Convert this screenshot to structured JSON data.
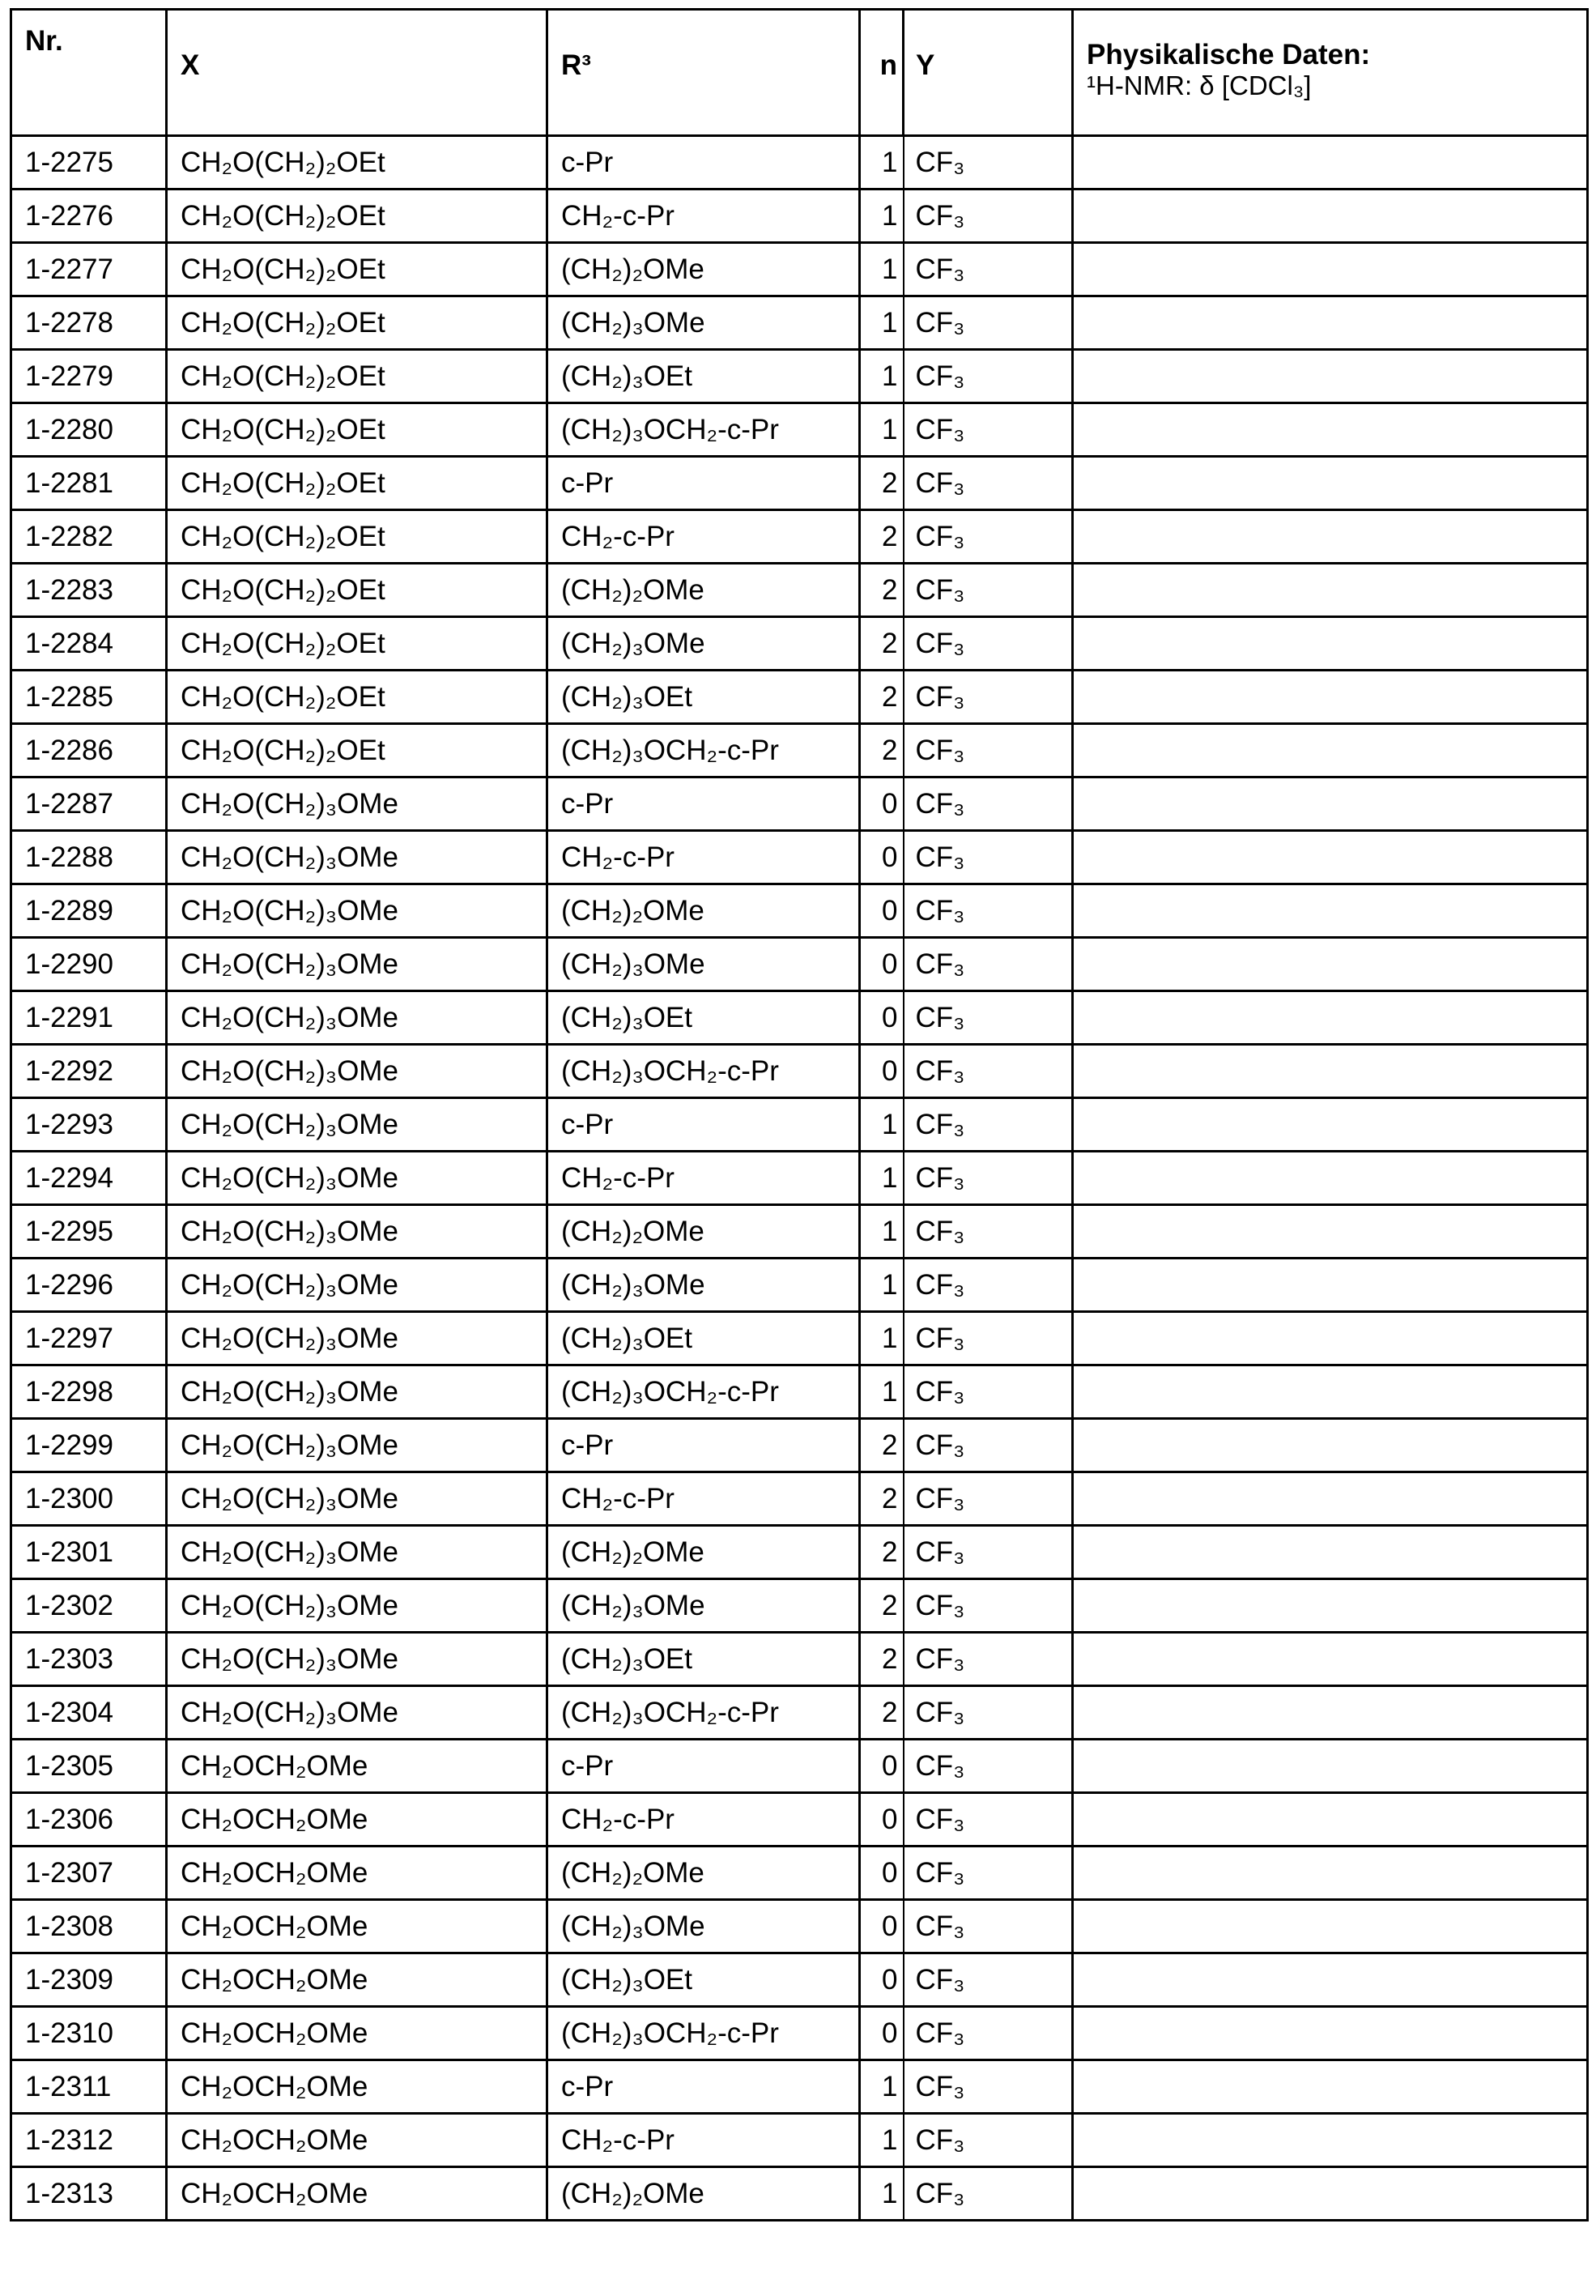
{
  "header": {
    "nr": "Nr.",
    "x": "X",
    "r3": "R³",
    "n": "n",
    "y": "Y",
    "phys_line1": "Physikalische Daten:",
    "phys_line2": "¹H-NMR: δ [CDCl₃]"
  },
  "rows": [
    {
      "nr": "1-2275",
      "x": "CH₂O(CH₂)₂OEt",
      "r3": "c-Pr",
      "n": "1",
      "y": "CF₃",
      "phys": ""
    },
    {
      "nr": "1-2276",
      "x": "CH₂O(CH₂)₂OEt",
      "r3": "CH₂-c-Pr",
      "n": "1",
      "y": "CF₃",
      "phys": ""
    },
    {
      "nr": "1-2277",
      "x": "CH₂O(CH₂)₂OEt",
      "r3": "(CH₂)₂OMe",
      "n": "1",
      "y": "CF₃",
      "phys": ""
    },
    {
      "nr": "1-2278",
      "x": "CH₂O(CH₂)₂OEt",
      "r3": "(CH₂)₃OMe",
      "n": "1",
      "y": "CF₃",
      "phys": ""
    },
    {
      "nr": "1-2279",
      "x": "CH₂O(CH₂)₂OEt",
      "r3": "(CH₂)₃OEt",
      "n": "1",
      "y": "CF₃",
      "phys": ""
    },
    {
      "nr": "1-2280",
      "x": "CH₂O(CH₂)₂OEt",
      "r3": "(CH₂)₃OCH₂-c-Pr",
      "n": "1",
      "y": "CF₃",
      "phys": ""
    },
    {
      "nr": "1-2281",
      "x": "CH₂O(CH₂)₂OEt",
      "r3": "c-Pr",
      "n": "2",
      "y": "CF₃",
      "phys": ""
    },
    {
      "nr": "1-2282",
      "x": "CH₂O(CH₂)₂OEt",
      "r3": "CH₂-c-Pr",
      "n": "2",
      "y": "CF₃",
      "phys": ""
    },
    {
      "nr": "1-2283",
      "x": "CH₂O(CH₂)₂OEt",
      "r3": "(CH₂)₂OMe",
      "n": "2",
      "y": "CF₃",
      "phys": ""
    },
    {
      "nr": "1-2284",
      "x": "CH₂O(CH₂)₂OEt",
      "r3": "(CH₂)₃OMe",
      "n": "2",
      "y": "CF₃",
      "phys": ""
    },
    {
      "nr": "1-2285",
      "x": "CH₂O(CH₂)₂OEt",
      "r3": "(CH₂)₃OEt",
      "n": "2",
      "y": "CF₃",
      "phys": ""
    },
    {
      "nr": "1-2286",
      "x": "CH₂O(CH₂)₂OEt",
      "r3": "(CH₂)₃OCH₂-c-Pr",
      "n": "2",
      "y": "CF₃",
      "phys": ""
    },
    {
      "nr": "1-2287",
      "x": "CH₂O(CH₂)₃OMe",
      "r3": "c-Pr",
      "n": "0",
      "y": "CF₃",
      "phys": ""
    },
    {
      "nr": "1-2288",
      "x": "CH₂O(CH₂)₃OMe",
      "r3": "CH₂-c-Pr",
      "n": "0",
      "y": "CF₃",
      "phys": ""
    },
    {
      "nr": "1-2289",
      "x": "CH₂O(CH₂)₃OMe",
      "r3": "(CH₂)₂OMe",
      "n": "0",
      "y": "CF₃",
      "phys": ""
    },
    {
      "nr": "1-2290",
      "x": "CH₂O(CH₂)₃OMe",
      "r3": "(CH₂)₃OMe",
      "n": "0",
      "y": "CF₃",
      "phys": ""
    },
    {
      "nr": "1-2291",
      "x": "CH₂O(CH₂)₃OMe",
      "r3": "(CH₂)₃OEt",
      "n": "0",
      "y": "CF₃",
      "phys": ""
    },
    {
      "nr": "1-2292",
      "x": "CH₂O(CH₂)₃OMe",
      "r3": "(CH₂)₃OCH₂-c-Pr",
      "n": "0",
      "y": "CF₃",
      "phys": ""
    },
    {
      "nr": "1-2293",
      "x": "CH₂O(CH₂)₃OMe",
      "r3": "c-Pr",
      "n": "1",
      "y": "CF₃",
      "phys": ""
    },
    {
      "nr": "1-2294",
      "x": "CH₂O(CH₂)₃OMe",
      "r3": "CH₂-c-Pr",
      "n": "1",
      "y": "CF₃",
      "phys": ""
    },
    {
      "nr": "1-2295",
      "x": "CH₂O(CH₂)₃OMe",
      "r3": "(CH₂)₂OMe",
      "n": "1",
      "y": "CF₃",
      "phys": ""
    },
    {
      "nr": "1-2296",
      "x": "CH₂O(CH₂)₃OMe",
      "r3": "(CH₂)₃OMe",
      "n": "1",
      "y": "CF₃",
      "phys": ""
    },
    {
      "nr": "1-2297",
      "x": "CH₂O(CH₂)₃OMe",
      "r3": "(CH₂)₃OEt",
      "n": "1",
      "y": "CF₃",
      "phys": ""
    },
    {
      "nr": "1-2298",
      "x": "CH₂O(CH₂)₃OMe",
      "r3": "(CH₂)₃OCH₂-c-Pr",
      "n": "1",
      "y": "CF₃",
      "phys": ""
    },
    {
      "nr": "1-2299",
      "x": "CH₂O(CH₂)₃OMe",
      "r3": "c-Pr",
      "n": "2",
      "y": "CF₃",
      "phys": ""
    },
    {
      "nr": "1-2300",
      "x": "CH₂O(CH₂)₃OMe",
      "r3": "CH₂-c-Pr",
      "n": "2",
      "y": "CF₃",
      "phys": ""
    },
    {
      "nr": "1-2301",
      "x": "CH₂O(CH₂)₃OMe",
      "r3": "(CH₂)₂OMe",
      "n": "2",
      "y": "CF₃",
      "phys": ""
    },
    {
      "nr": "1-2302",
      "x": "CH₂O(CH₂)₃OMe",
      "r3": "(CH₂)₃OMe",
      "n": "2",
      "y": "CF₃",
      "phys": ""
    },
    {
      "nr": "1-2303",
      "x": "CH₂O(CH₂)₃OMe",
      "r3": "(CH₂)₃OEt",
      "n": "2",
      "y": "CF₃",
      "phys": ""
    },
    {
      "nr": "1-2304",
      "x": "CH₂O(CH₂)₃OMe",
      "r3": "(CH₂)₃OCH₂-c-Pr",
      "n": "2",
      "y": "CF₃",
      "phys": ""
    },
    {
      "nr": "1-2305",
      "x": "CH₂OCH₂OMe",
      "r3": "c-Pr",
      "n": "0",
      "y": "CF₃",
      "phys": ""
    },
    {
      "nr": "1-2306",
      "x": "CH₂OCH₂OMe",
      "r3": "CH₂-c-Pr",
      "n": "0",
      "y": "CF₃",
      "phys": ""
    },
    {
      "nr": "1-2307",
      "x": "CH₂OCH₂OMe",
      "r3": "(CH₂)₂OMe",
      "n": "0",
      "y": "CF₃",
      "phys": ""
    },
    {
      "nr": "1-2308",
      "x": "CH₂OCH₂OMe",
      "r3": "(CH₂)₃OMe",
      "n": "0",
      "y": "CF₃",
      "phys": ""
    },
    {
      "nr": "1-2309",
      "x": "CH₂OCH₂OMe",
      "r3": "(CH₂)₃OEt",
      "n": "0",
      "y": "CF₃",
      "phys": ""
    },
    {
      "nr": "1-2310",
      "x": "CH₂OCH₂OMe",
      "r3": "(CH₂)₃OCH₂-c-Pr",
      "n": "0",
      "y": "CF₃",
      "phys": ""
    },
    {
      "nr": "1-2311",
      "x": "CH₂OCH₂OMe",
      "r3": "c-Pr",
      "n": "1",
      "y": "CF₃",
      "phys": ""
    },
    {
      "nr": "1-2312",
      "x": "CH₂OCH₂OMe",
      "r3": "CH₂-c-Pr",
      "n": "1",
      "y": "CF₃",
      "phys": ""
    },
    {
      "nr": "1-2313",
      "x": "CH₂OCH₂OMe",
      "r3": "(CH₂)₂OMe",
      "n": "1",
      "y": "CF₃",
      "phys": ""
    }
  ]
}
